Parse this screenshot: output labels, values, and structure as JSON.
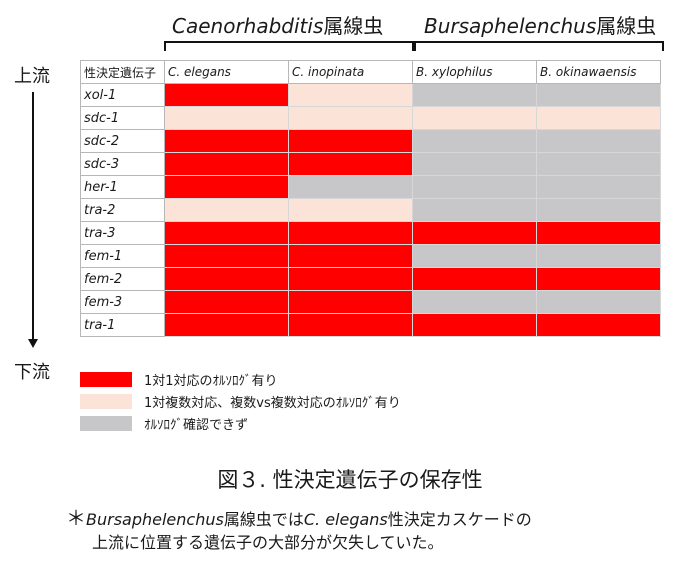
{
  "genus_headers": [
    {
      "italic": "Caenorhabditis",
      "suffix": "属線虫"
    },
    {
      "italic": "Bursaphelenchus",
      "suffix": "属線虫"
    }
  ],
  "direction": {
    "top": "上流",
    "bottom": "下流"
  },
  "table": {
    "corner_label": "性決定遺伝子",
    "species": [
      "C. elegans",
      "C. inopinata",
      "B. xylophilus",
      "B. okinawaensis"
    ],
    "rows": [
      {
        "gene": "xol-1",
        "cells": [
          "red",
          "pink",
          "gray",
          "gray"
        ]
      },
      {
        "gene": "sdc-1",
        "cells": [
          "pink",
          "pink",
          "pink",
          "pink"
        ]
      },
      {
        "gene": "sdc-2",
        "cells": [
          "red",
          "red",
          "gray",
          "gray"
        ]
      },
      {
        "gene": "sdc-3",
        "cells": [
          "red",
          "red",
          "gray",
          "gray"
        ]
      },
      {
        "gene": "her-1",
        "cells": [
          "red",
          "gray",
          "gray",
          "gray"
        ]
      },
      {
        "gene": "tra-2",
        "cells": [
          "pink",
          "pink",
          "gray",
          "gray"
        ]
      },
      {
        "gene": "tra-3",
        "cells": [
          "red",
          "red",
          "red",
          "red"
        ]
      },
      {
        "gene": "fem-1",
        "cells": [
          "red",
          "red",
          "gray",
          "gray"
        ]
      },
      {
        "gene": "fem-2",
        "cells": [
          "red",
          "red",
          "red",
          "red"
        ]
      },
      {
        "gene": "fem-3",
        "cells": [
          "red",
          "red",
          "gray",
          "gray"
        ]
      },
      {
        "gene": "tra-1",
        "cells": [
          "red",
          "red",
          "red",
          "red"
        ]
      }
    ]
  },
  "colors": {
    "red": "#ff0000",
    "pink": "#fbe3d7",
    "gray": "#c7c7c9"
  },
  "legend": [
    {
      "key": "red",
      "label": "1対1対応のｵﾙｿﾛｸﾞ有り"
    },
    {
      "key": "pink",
      "label": "1対複数対応、複数vs複数対応のｵﾙｿﾛｸﾞ有り"
    },
    {
      "key": "gray",
      "label": "ｵﾙｿﾛｸﾞ確認できず"
    }
  ],
  "caption": "図３. 性決定遺伝子の保存性",
  "note": {
    "mark": "＊",
    "part1_italic": "Bursaphelenchus",
    "part2": "属線虫では",
    "part3_italic": "C. elegans",
    "part4": "性決定カスケードの",
    "line2": "上流に位置する遺伝子の大部分が欠失していた。"
  }
}
